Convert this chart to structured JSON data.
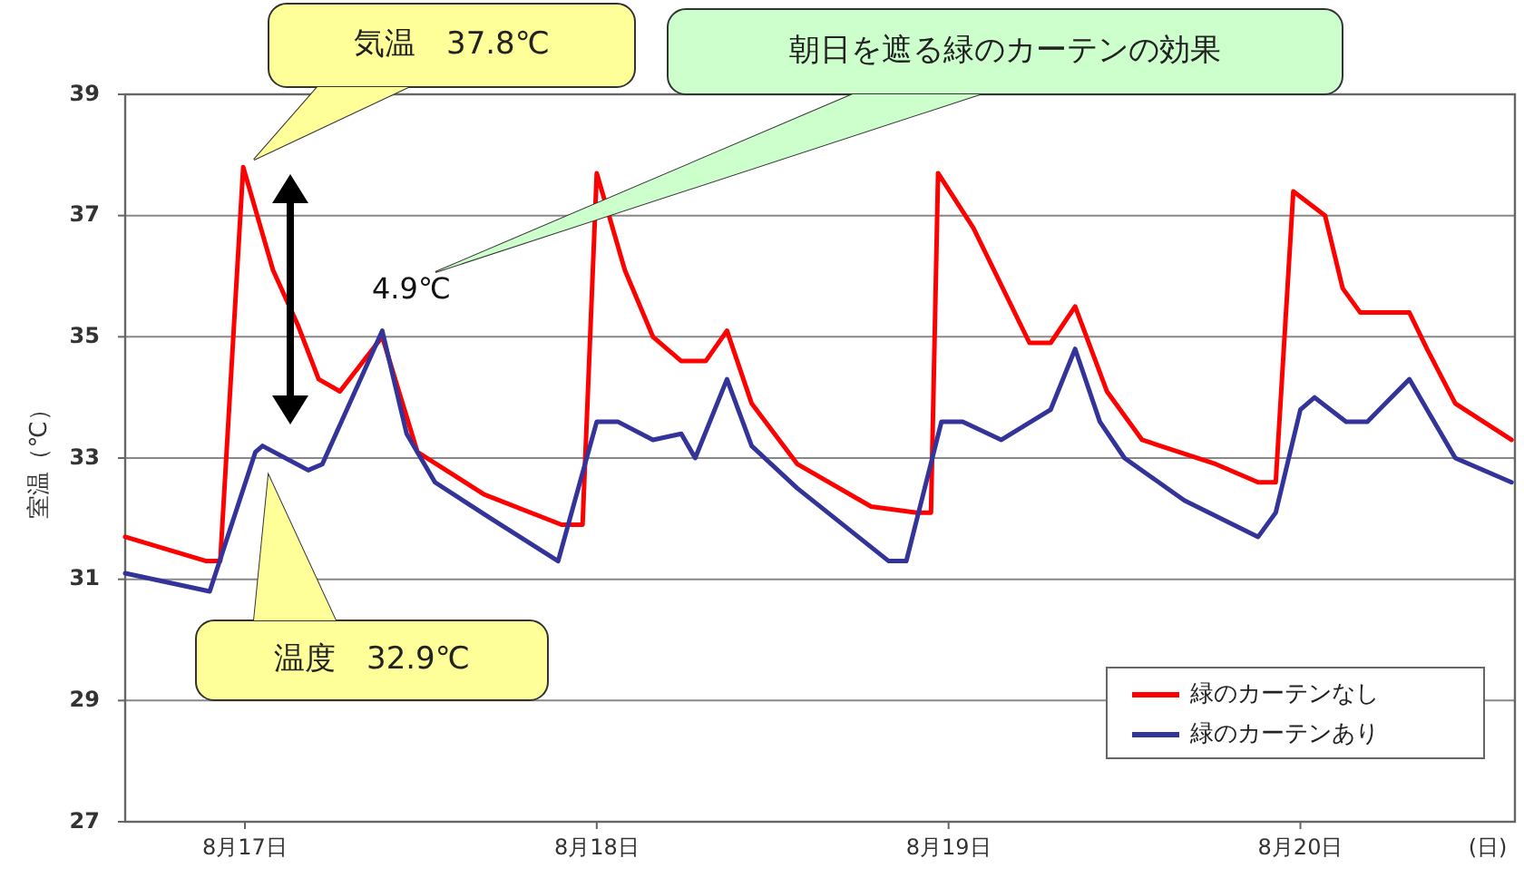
{
  "chart_data": {
    "type": "line",
    "ylabel": "室温（℃）",
    "xlabel": "(日)",
    "xlim": [
      "--08-16T15:50",
      "--08-20T14:38"
    ],
    "xticks": [
      {
        "value": "--08-17",
        "label": "8月17日"
      },
      {
        "value": "--08-18",
        "label": "8月18日"
      },
      {
        "value": "--08-19",
        "label": "8月19日"
      },
      {
        "value": "--08-20",
        "label": "8月20日"
      }
    ],
    "ylim": [
      27,
      39
    ],
    "yticks": [
      27,
      29,
      31,
      33,
      35,
      37,
      39
    ],
    "grid": "y",
    "legend": "bottom right",
    "line_style": "solid",
    "marker": "none",
    "annotations": [
      "気温　37.8℃",
      "朝日を遮る緑のカーテンの効果",
      "4.9℃",
      "温度　32.9℃"
    ],
    "series": [
      {
        "name": "緑のカーテンなし",
        "color": "#ff0000",
        "x": [
          "--08-16T15:50",
          "--08-16T21:22",
          "--08-16T22:19",
          "--08-16T23:53",
          "--08-17T01:55",
          "--08-17T03:36",
          "--08-17T05:02",
          "--08-17T06:29",
          "--08-17T09:22",
          "--08-17T11:46",
          "--08-17T16:19",
          "--08-17T21:36",
          "--08-17T23:02",
          "--08-18T00:00",
          "--08-18T01:55",
          "--08-18T03:50",
          "--08-18T05:46",
          "--08-18T07:26",
          "--08-18T08:53",
          "--08-18T10:34",
          "--08-18T13:41",
          "--08-18T18:43",
          "--08-18T21:50",
          "--08-18T22:48",
          "--08-18T23:17",
          "--08-19T01:41",
          "--08-19T05:31",
          "--08-19T06:58",
          "--08-19T08:38",
          "--08-19T10:48",
          "--08-19T13:12",
          "--08-19T18:14",
          "--08-19T21:07",
          "--08-19T22:19",
          "--08-19T23:31",
          "--08-20T01:41",
          "--08-20T02:53",
          "--08-20T04:05",
          "--08-20T06:14",
          "--08-20T07:26",
          "--08-20T08:38",
          "--08-20T10:34",
          "--08-20T14:24"
        ],
        "values": [
          31.7,
          31.3,
          31.3,
          37.8,
          36.1,
          35.2,
          34.3,
          34.1,
          35.0,
          33.1,
          32.4,
          31.9,
          31.9,
          37.7,
          36.1,
          35.0,
          34.6,
          34.6,
          35.1,
          33.9,
          32.9,
          32.2,
          32.1,
          32.1,
          37.7,
          36.8,
          34.9,
          34.9,
          35.5,
          34.1,
          33.3,
          32.9,
          32.6,
          32.6,
          37.4,
          37.0,
          35.8,
          35.4,
          35.4,
          35.4,
          34.8,
          33.9,
          33.3
        ]
      },
      {
        "name": "緑のカーテンあり",
        "color": "#333399",
        "x": [
          "--08-16T15:50",
          "--08-16T21:36",
          "--08-17T00:43",
          "--08-17T01:12",
          "--08-17T04:19",
          "--08-17T05:17",
          "--08-17T09:22",
          "--08-17T11:02",
          "--08-17T12:58",
          "--08-17T16:48",
          "--08-17T21:22",
          "--08-18T00:00",
          "--08-18T01:26",
          "--08-18T03:50",
          "--08-18T05:46",
          "--08-18T06:43",
          "--08-18T08:53",
          "--08-18T10:34",
          "--08-18T13:41",
          "--08-18T19:55",
          "--08-18T21:07",
          "--08-18T23:31",
          "--08-19T00:58",
          "--08-19T03:36",
          "--08-19T06:58",
          "--08-19T08:38",
          "--08-19T10:19",
          "--08-19T12:00",
          "--08-19T16:05",
          "--08-19T21:07",
          "--08-19T22:19",
          "--08-20T00:00",
          "--08-20T00:58",
          "--08-20T03:07",
          "--08-20T04:34",
          "--08-20T07:26",
          "--08-20T08:38",
          "--08-20T10:34",
          "--08-20T14:24"
        ],
        "values": [
          31.1,
          30.8,
          33.1,
          33.2,
          32.8,
          32.9,
          35.1,
          33.4,
          32.6,
          32.0,
          31.3,
          33.6,
          33.6,
          33.3,
          33.4,
          33.0,
          34.3,
          33.2,
          32.5,
          31.3,
          31.3,
          33.6,
          33.6,
          33.3,
          33.8,
          34.8,
          33.6,
          33.0,
          32.3,
          31.7,
          32.1,
          33.8,
          34.0,
          33.6,
          33.6,
          34.3,
          33.8,
          33.0,
          32.6
        ]
      }
    ]
  }
}
